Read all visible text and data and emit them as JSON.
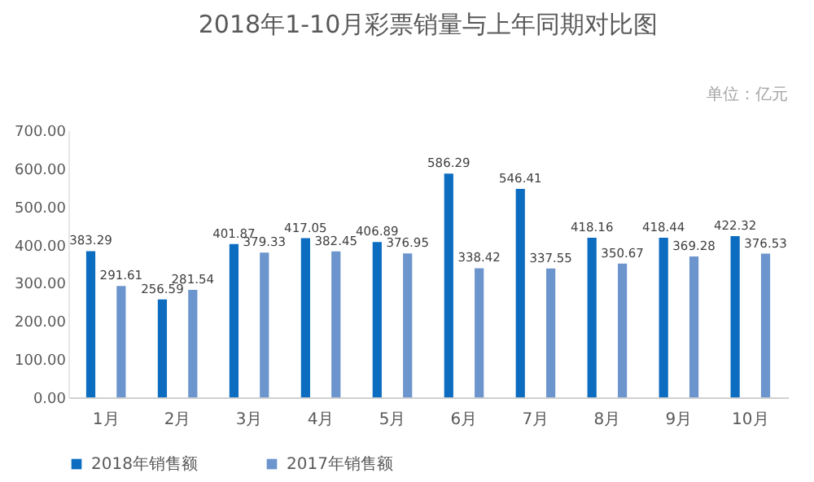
{
  "chart_data": {
    "type": "bar",
    "title": "2018年1-10月彩票销量与上年同期对比图",
    "subtitle": "单位：亿元",
    "categories": [
      "1月",
      "2月",
      "3月",
      "4月",
      "5月",
      "6月",
      "7月",
      "8月",
      "9月",
      "10月"
    ],
    "series": [
      {
        "name": "2018年销售额",
        "color": "#0b6cc0",
        "values": [
          383.29,
          256.59,
          401.87,
          417.05,
          406.89,
          586.29,
          546.41,
          418.16,
          418.44,
          422.32
        ]
      },
      {
        "name": "2017年销售额",
        "color": "#6b95cc",
        "values": [
          291.61,
          281.54,
          379.33,
          382.45,
          376.95,
          338.42,
          337.55,
          350.67,
          369.28,
          376.53
        ]
      }
    ],
    "ylim": [
      0,
      700
    ],
    "yticks": [
      {
        "value": 0,
        "label": "0.00"
      },
      {
        "value": 100,
        "label": "100.00"
      },
      {
        "value": 200,
        "label": "200.00"
      },
      {
        "value": 300,
        "label": "300.00"
      },
      {
        "value": 400,
        "label": "400.00"
      },
      {
        "value": 500,
        "label": "500.00"
      },
      {
        "value": 600,
        "label": "600.00"
      },
      {
        "value": 700,
        "label": "700.00"
      }
    ],
    "data_labels": true,
    "grid": false,
    "legend": "bottom"
  }
}
